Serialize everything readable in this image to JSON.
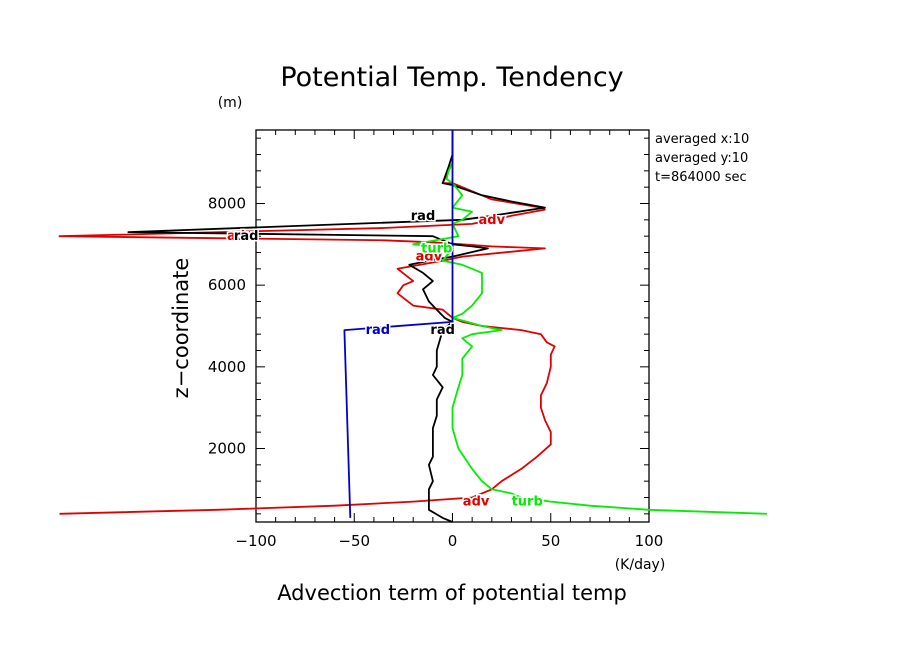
{
  "chart_data": {
    "type": "line",
    "title": "Potential Temp. Tendency",
    "xlabel": "Advection term of potential temp",
    "ylabel": "z−coordinate",
    "x_unit": "(K/day)",
    "y_unit": "(m)",
    "xlim": [
      -100,
      100
    ],
    "ylim": [
      200,
      9800
    ],
    "xticks": [
      -100,
      -50,
      0,
      50,
      100
    ],
    "xtick_labels": [
      "−100",
      "−50",
      "0",
      "50",
      "100"
    ],
    "yticks": [
      2000,
      4000,
      6000,
      8000
    ],
    "ytick_labels": [
      "2000",
      "4000",
      "6000",
      "8000"
    ],
    "grid": false,
    "info": [
      "averaged  x:10",
      "averaged  y:10",
      "t=864000 sec"
    ],
    "series": [
      {
        "name": "adv",
        "color": "#e00000",
        "points": [
          [
            0,
            9700
          ],
          [
            0,
            9000
          ],
          [
            -3,
            8700
          ],
          [
            -5,
            8500
          ],
          [
            0,
            8500
          ],
          [
            20,
            8100
          ],
          [
            45,
            7900
          ],
          [
            47,
            7850
          ],
          [
            30,
            7700
          ],
          [
            10,
            7500
          ],
          [
            -35,
            7400
          ],
          [
            -200,
            7200
          ],
          [
            -35,
            7100
          ],
          [
            -10,
            7050
          ],
          [
            20,
            6950
          ],
          [
            47,
            6900
          ],
          [
            5,
            6700
          ],
          [
            -5,
            6600
          ],
          [
            -28,
            6400
          ],
          [
            -20,
            6100
          ],
          [
            -25,
            6000
          ],
          [
            -28,
            5800
          ],
          [
            -20,
            5500
          ],
          [
            -5,
            5400
          ],
          [
            0,
            5200
          ],
          [
            5,
            5100
          ],
          [
            15,
            5000
          ],
          [
            35,
            4900
          ],
          [
            45,
            4800
          ],
          [
            48,
            4600
          ],
          [
            52,
            4500
          ],
          [
            50,
            4300
          ],
          [
            50,
            4000
          ],
          [
            48,
            3600
          ],
          [
            45,
            3300
          ],
          [
            45,
            3000
          ],
          [
            47,
            2700
          ],
          [
            50,
            2400
          ],
          [
            50,
            2100
          ],
          [
            43,
            1800
          ],
          [
            35,
            1500
          ],
          [
            25,
            1200
          ],
          [
            20,
            1000
          ],
          [
            10,
            800
          ],
          [
            -20,
            700
          ],
          [
            -60,
            600
          ],
          [
            -120,
            500
          ],
          [
            -200,
            400
          ]
        ],
        "label_positions": [
          [
            20,
            7600
          ],
          [
            -108,
            7200
          ],
          [
            -12,
            6700
          ],
          [
            12,
            700
          ]
        ]
      },
      {
        "name": "rad",
        "color": "#000000",
        "points": [
          [
            0,
            9800
          ],
          [
            0,
            9200
          ],
          [
            -2,
            8900
          ],
          [
            -5,
            8500
          ],
          [
            0,
            8450
          ],
          [
            15,
            8200
          ],
          [
            30,
            8050
          ],
          [
            47,
            7900
          ],
          [
            20,
            7700
          ],
          [
            5,
            7600
          ],
          [
            -165,
            7300
          ],
          [
            -10,
            7200
          ],
          [
            0,
            7000
          ],
          [
            10,
            6950
          ],
          [
            18,
            6900
          ],
          [
            0,
            6700
          ],
          [
            -12,
            6600
          ],
          [
            -22,
            6500
          ],
          [
            -15,
            6300
          ],
          [
            -10,
            6100
          ],
          [
            -15,
            5900
          ],
          [
            -12,
            5600
          ],
          [
            -8,
            5400
          ],
          [
            -4,
            5200
          ],
          [
            0,
            5100
          ],
          [
            -5,
            4900
          ],
          [
            -8,
            4400
          ],
          [
            -8,
            4000
          ],
          [
            -10,
            3800
          ],
          [
            -5,
            3500
          ],
          [
            -8,
            3200
          ],
          [
            -8,
            2800
          ],
          [
            -10,
            2500
          ],
          [
            -10,
            2100
          ],
          [
            -10,
            1800
          ],
          [
            -12,
            1600
          ],
          [
            -10,
            1200
          ],
          [
            -12,
            1000
          ],
          [
            -12,
            700
          ],
          [
            -12,
            500
          ],
          [
            -5,
            300
          ],
          [
            0,
            200
          ]
        ],
        "label_positions": [
          [
            -15,
            7700
          ],
          [
            -105,
            7200
          ],
          [
            -5,
            4900
          ]
        ]
      },
      {
        "name": "turb",
        "color": "#00ee00",
        "points": [
          [
            0,
            9000
          ],
          [
            -2,
            8800
          ],
          [
            -3,
            8600
          ],
          [
            0,
            8500
          ],
          [
            5,
            8200
          ],
          [
            0,
            7900
          ],
          [
            10,
            7800
          ],
          [
            5,
            7600
          ],
          [
            0,
            7500
          ],
          [
            3,
            7200
          ],
          [
            -20,
            7000
          ],
          [
            0,
            6900
          ],
          [
            -5,
            6600
          ],
          [
            5,
            6500
          ],
          [
            10,
            6400
          ],
          [
            15,
            6300
          ],
          [
            15,
            5800
          ],
          [
            10,
            5500
          ],
          [
            5,
            5300
          ],
          [
            0,
            5200
          ],
          [
            15,
            5000
          ],
          [
            25,
            4900
          ],
          [
            10,
            4800
          ],
          [
            5,
            4700
          ],
          [
            10,
            4500
          ],
          [
            5,
            4200
          ],
          [
            5,
            3800
          ],
          [
            3,
            3500
          ],
          [
            0,
            3000
          ],
          [
            0,
            2500
          ],
          [
            3,
            2000
          ],
          [
            10,
            1500
          ],
          [
            15,
            1200
          ],
          [
            20,
            1000
          ],
          [
            30,
            900
          ],
          [
            35,
            800
          ],
          [
            50,
            700
          ],
          [
            70,
            600
          ],
          [
            100,
            500
          ],
          [
            160,
            400
          ]
        ],
        "label_positions": [
          [
            -8,
            6900
          ],
          [
            38,
            700
          ]
        ]
      },
      {
        "name": "rad",
        "color": "#0000cc",
        "points": [
          [
            0,
            9800
          ],
          [
            0,
            5100
          ],
          [
            -55,
            4900
          ],
          [
            -52,
            300
          ]
        ],
        "label_positions": [
          [
            -38,
            4900
          ]
        ]
      }
    ]
  }
}
